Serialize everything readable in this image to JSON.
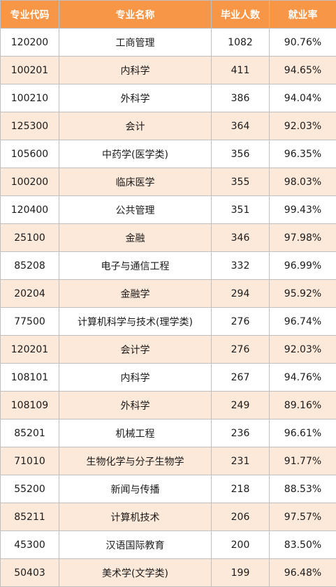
{
  "table": {
    "headers": [
      "专业代码",
      "专业名称",
      "毕业人数",
      "就业率"
    ],
    "rows": [
      [
        "120200",
        "工商管理",
        "1082",
        "90.76%"
      ],
      [
        "100201",
        "内科学",
        "411",
        "94.65%"
      ],
      [
        "100210",
        "外科学",
        "386",
        "94.04%"
      ],
      [
        "125300",
        "会计",
        "364",
        "92.03%"
      ],
      [
        "105600",
        "中药学(医学类)",
        "356",
        "96.35%"
      ],
      [
        "100200",
        "临床医学",
        "355",
        "98.03%"
      ],
      [
        "120400",
        "公共管理",
        "351",
        "99.43%"
      ],
      [
        "25100",
        "金融",
        "346",
        "97.98%"
      ],
      [
        "85208",
        "电子与通信工程",
        "332",
        "96.99%"
      ],
      [
        "20204",
        "金融学",
        "294",
        "95.92%"
      ],
      [
        "77500",
        "计算机科学与技术(理学类)",
        "276",
        "96.74%"
      ],
      [
        "120201",
        "会计学",
        "276",
        "92.03%"
      ],
      [
        "108101",
        "内科学",
        "267",
        "94.76%"
      ],
      [
        "108109",
        "外科学",
        "249",
        "89.16%"
      ],
      [
        "85201",
        "机械工程",
        "236",
        "96.61%"
      ],
      [
        "71010",
        "生物化学与分子生物学",
        "231",
        "91.77%"
      ],
      [
        "55200",
        "新闻与传播",
        "218",
        "88.53%"
      ],
      [
        "85211",
        "计算机技术",
        "206",
        "97.57%"
      ],
      [
        "45300",
        "汉语国际教育",
        "200",
        "83.50%"
      ],
      [
        "50403",
        "美术学(文学类)",
        "199",
        "96.48%"
      ]
    ]
  },
  "colors": {
    "header_bg": "#f79646",
    "header_text": "#ffffff",
    "alt_row_bg": "#fde9d9",
    "row_bg": "#ffffff",
    "border": "#bfbfbf"
  }
}
